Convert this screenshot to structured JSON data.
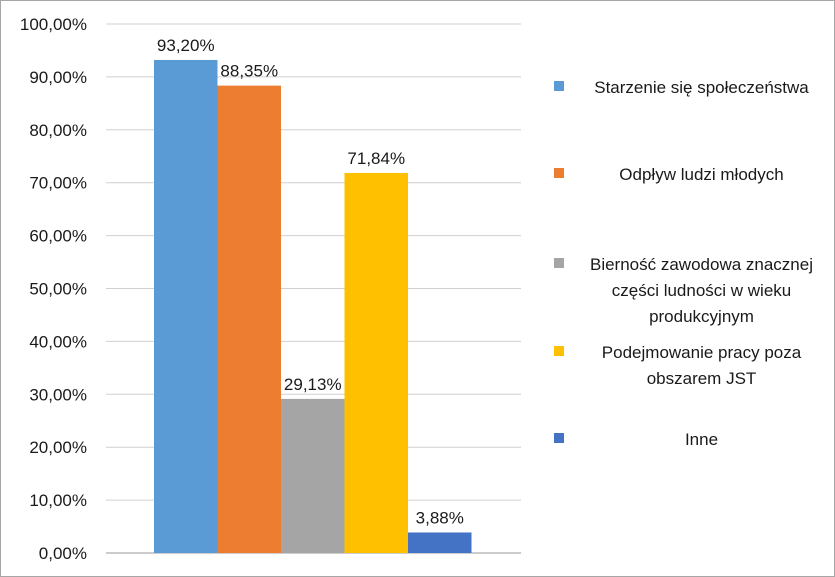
{
  "chart_data": {
    "type": "bar",
    "series": [
      {
        "name": "Starzenie się społeczeństwa",
        "value": 93.2,
        "label": "93,20%",
        "color": "#5b9bd5"
      },
      {
        "name": "Odpływ ludzi młodych",
        "value": 88.35,
        "label": "88,35%",
        "color": "#ed7d31"
      },
      {
        "name": "Bierność zawodowa znacznej części ludności w wieku produkcyjnym",
        "value": 29.13,
        "label": "29,13%",
        "color": "#a5a5a5"
      },
      {
        "name": "Podejmowanie pracy poza obszarem JST",
        "value": 71.84,
        "label": "71,84%",
        "color": "#ffc000"
      },
      {
        "name": "Inne",
        "value": 3.88,
        "label": "3,88%",
        "color": "#4472c4"
      }
    ],
    "y_ticks": [
      "0,00%",
      "10,00%",
      "20,00%",
      "30,00%",
      "40,00%",
      "50,00%",
      "60,00%",
      "70,00%",
      "80,00%",
      "90,00%",
      "100,00%"
    ],
    "ylim": [
      0,
      100
    ],
    "grid": true,
    "legend_position": "right"
  }
}
